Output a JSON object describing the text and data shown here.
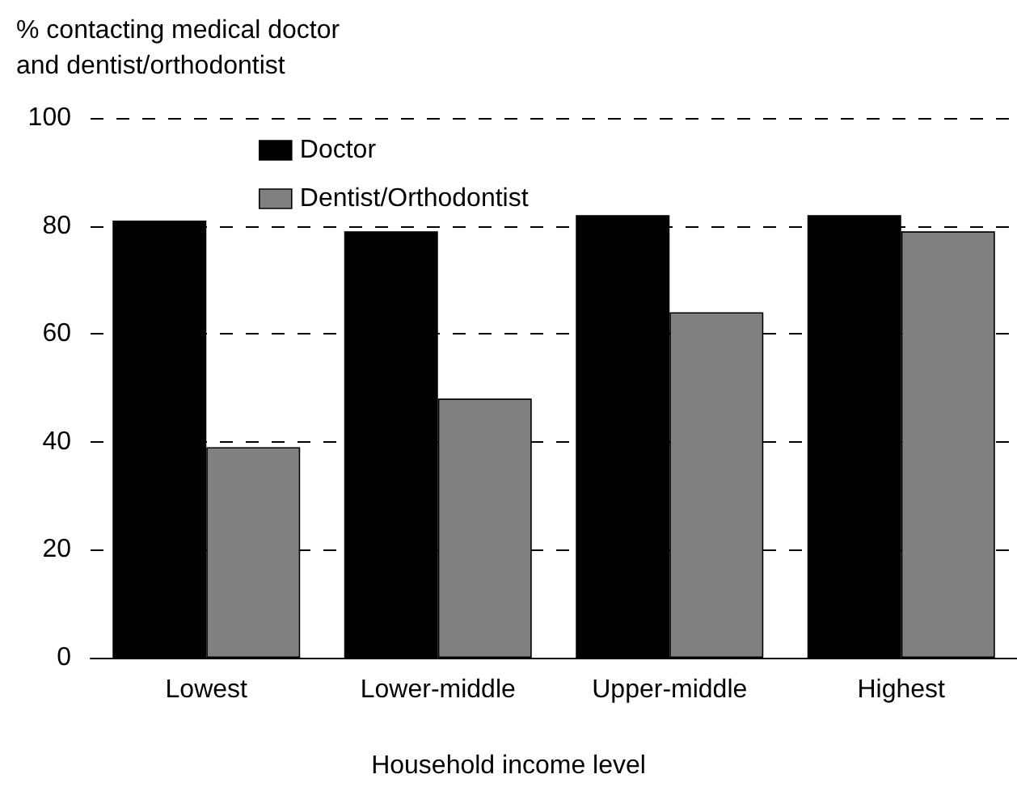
{
  "chart_data": {
    "type": "bar",
    "ylabel": "% contacting medical doctor\nand dentist/orthodontist",
    "xlabel": "Household income level",
    "categories": [
      "Lowest",
      "Lower-middle",
      "Upper-middle",
      "Highest"
    ],
    "series": [
      {
        "name": "Doctor",
        "color": "#000000",
        "values": [
          81,
          79,
          82,
          82
        ]
      },
      {
        "name": "Dentist/Orthodontist",
        "color": "#808080",
        "values": [
          39,
          48,
          64,
          79
        ]
      }
    ],
    "ylim": [
      0,
      100
    ],
    "yticks": [
      0,
      20,
      40,
      60,
      80,
      100
    ],
    "grid": "y",
    "legend": "top left"
  }
}
